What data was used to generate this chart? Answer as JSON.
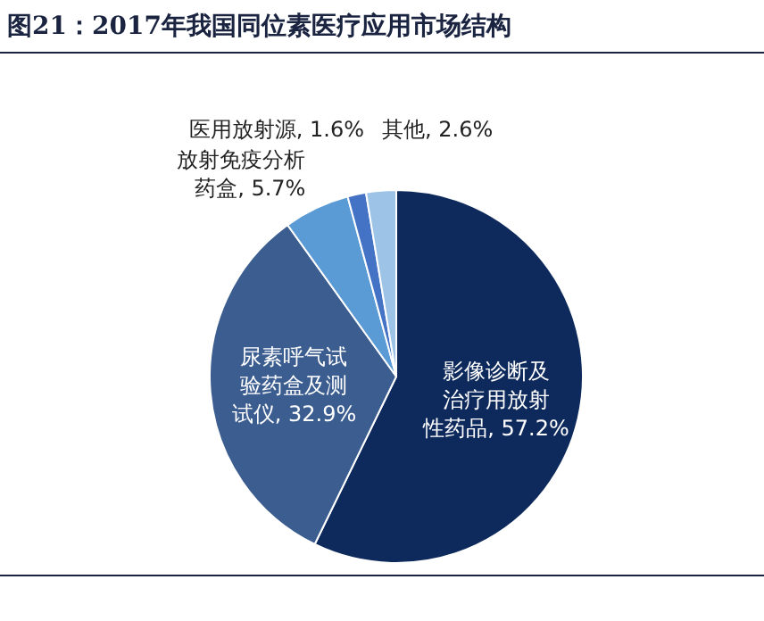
{
  "chart_data": {
    "type": "pie",
    "title": "图21：2017年我国同位素医疗应用市场结构",
    "categories": [
      "影像诊断及治疗用放射性药品",
      "尿素呼气试验药盒及测试仪",
      "放射免疫分析药盒",
      "医用放射源",
      "其他"
    ],
    "values": [
      57.2,
      32.9,
      5.7,
      1.6,
      2.6
    ],
    "colors": [
      "#0e2a5c",
      "#3b5d8f",
      "#5b9bd5",
      "#4472c4",
      "#9dc3e6"
    ],
    "value_labels": [
      "57.2%",
      "32.9%",
      "5.7%",
      "1.6%",
      "2.6%"
    ]
  }
}
